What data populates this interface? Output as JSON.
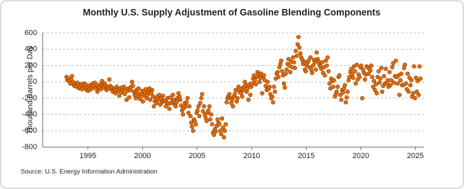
{
  "chart_data": {
    "type": "scatter",
    "title": "Monthly U.S. Supply Adjustment of Gasoline Blending Components",
    "y_label": "Thousand Barrels per Day",
    "source": "Source: U.S. Energy Information Administration",
    "xlim": [
      1990.85,
      2025.8
    ],
    "xticks": [
      1995,
      2000,
      2005,
      2010,
      2015,
      2020,
      2025
    ],
    "ylim": [
      -800,
      600
    ],
    "yticks": [
      -800,
      -600,
      -400,
      -200,
      0,
      200,
      400,
      600
    ],
    "grid": true,
    "x": [
      1993.04,
      1993.13,
      1993.21,
      1993.29,
      1993.38,
      1993.46,
      1993.54,
      1993.63,
      1993.71,
      1993.79,
      1993.88,
      1993.96,
      1994.04,
      1994.13,
      1994.21,
      1994.29,
      1994.38,
      1994.46,
      1994.54,
      1994.63,
      1994.71,
      1994.79,
      1994.88,
      1994.96,
      1995.04,
      1995.13,
      1995.21,
      1995.29,
      1995.38,
      1995.46,
      1995.54,
      1995.63,
      1995.71,
      1995.79,
      1995.88,
      1995.96,
      1996.04,
      1996.13,
      1996.21,
      1996.29,
      1996.38,
      1996.46,
      1996.54,
      1996.63,
      1996.71,
      1996.79,
      1996.88,
      1996.96,
      1997.04,
      1997.13,
      1997.21,
      1997.29,
      1997.38,
      1997.46,
      1997.54,
      1997.63,
      1997.71,
      1997.79,
      1997.88,
      1997.96,
      1998.04,
      1998.13,
      1998.21,
      1998.29,
      1998.38,
      1998.46,
      1998.54,
      1998.63,
      1998.71,
      1998.79,
      1998.88,
      1998.96,
      1999.04,
      1999.13,
      1999.21,
      1999.29,
      1999.38,
      1999.46,
      1999.54,
      1999.63,
      1999.71,
      1999.79,
      1999.88,
      1999.96,
      2000.04,
      2000.13,
      2000.21,
      2000.29,
      2000.38,
      2000.46,
      2000.54,
      2000.63,
      2000.71,
      2000.79,
      2000.88,
      2000.96,
      2001.04,
      2001.13,
      2001.21,
      2001.29,
      2001.38,
      2001.46,
      2001.54,
      2001.63,
      2001.71,
      2001.79,
      2001.88,
      2001.96,
      2002.04,
      2002.13,
      2002.21,
      2002.29,
      2002.38,
      2002.46,
      2002.54,
      2002.63,
      2002.71,
      2002.79,
      2002.88,
      2002.96,
      2003.04,
      2003.13,
      2003.21,
      2003.29,
      2003.38,
      2003.46,
      2003.54,
      2003.63,
      2003.71,
      2003.79,
      2003.88,
      2003.96,
      2004.04,
      2004.13,
      2004.21,
      2004.29,
      2004.38,
      2004.46,
      2004.54,
      2004.63,
      2004.71,
      2004.79,
      2004.88,
      2004.96,
      2005.04,
      2005.13,
      2005.21,
      2005.29,
      2005.38,
      2005.46,
      2005.54,
      2005.63,
      2005.71,
      2005.79,
      2005.88,
      2005.96,
      2006.04,
      2006.13,
      2006.21,
      2006.29,
      2006.38,
      2006.46,
      2006.54,
      2006.63,
      2006.71,
      2006.79,
      2006.88,
      2006.96,
      2007.04,
      2007.13,
      2007.21,
      2007.29,
      2007.38,
      2007.46,
      2007.54,
      2007.63,
      2007.71,
      2007.79,
      2007.88,
      2007.96,
      2008.04,
      2008.13,
      2008.21,
      2008.29,
      2008.38,
      2008.46,
      2008.54,
      2008.63,
      2008.71,
      2008.79,
      2008.88,
      2008.96,
      2009.04,
      2009.13,
      2009.21,
      2009.29,
      2009.38,
      2009.46,
      2009.54,
      2009.63,
      2009.71,
      2009.79,
      2009.88,
      2009.96,
      2010.04,
      2010.13,
      2010.21,
      2010.29,
      2010.38,
      2010.46,
      2010.54,
      2010.63,
      2010.71,
      2010.79,
      2010.88,
      2010.96,
      2011.04,
      2011.13,
      2011.21,
      2011.29,
      2011.38,
      2011.46,
      2011.54,
      2011.63,
      2011.71,
      2011.79,
      2011.88,
      2011.96,
      2012.04,
      2012.13,
      2012.21,
      2012.29,
      2012.38,
      2012.46,
      2012.54,
      2012.63,
      2012.71,
      2012.79,
      2012.88,
      2012.96,
      2013.04,
      2013.13,
      2013.21,
      2013.29,
      2013.38,
      2013.46,
      2013.54,
      2013.63,
      2013.71,
      2013.79,
      2013.88,
      2013.96,
      2014.04,
      2014.13,
      2014.21,
      2014.29,
      2014.38,
      2014.46,
      2014.54,
      2014.63,
      2014.71,
      2014.79,
      2014.88,
      2014.96,
      2015.04,
      2015.13,
      2015.21,
      2015.29,
      2015.38,
      2015.46,
      2015.54,
      2015.63,
      2015.71,
      2015.79,
      2015.88,
      2015.96,
      2016.04,
      2016.13,
      2016.21,
      2016.29,
      2016.38,
      2016.46,
      2016.54,
      2016.63,
      2016.71,
      2016.79,
      2016.88,
      2016.96,
      2017.04,
      2017.13,
      2017.21,
      2017.29,
      2017.38,
      2017.46,
      2017.54,
      2017.63,
      2017.71,
      2017.79,
      2017.88,
      2017.96,
      2018.04,
      2018.13,
      2018.21,
      2018.29,
      2018.38,
      2018.46,
      2018.54,
      2018.63,
      2018.71,
      2018.79,
      2018.88,
      2018.96,
      2019.04,
      2019.13,
      2019.21,
      2019.29,
      2019.38,
      2019.46,
      2019.54,
      2019.63,
      2019.71,
      2019.79,
      2019.88,
      2019.96,
      2020.04,
      2020.13,
      2020.21,
      2020.29,
      2020.38,
      2020.46,
      2020.54,
      2020.63,
      2020.71,
      2020.79,
      2020.88,
      2020.96,
      2021.04,
      2021.13,
      2021.21,
      2021.29,
      2021.38,
      2021.46,
      2021.54,
      2021.63,
      2021.71,
      2021.79,
      2021.88,
      2021.96,
      2022.04,
      2022.13,
      2022.21,
      2022.29,
      2022.38,
      2022.46,
      2022.54,
      2022.63,
      2022.71,
      2022.79,
      2022.88,
      2022.96,
      2023.04,
      2023.13,
      2023.21,
      2023.29,
      2023.38,
      2023.46,
      2023.54,
      2023.63,
      2023.71,
      2023.79,
      2023.88,
      2023.96,
      2024.04,
      2024.13,
      2024.21,
      2024.29,
      2024.38,
      2024.46,
      2024.54,
      2024.63,
      2024.71,
      2024.79,
      2024.88,
      2024.96,
      2025.04,
      2025.13,
      2025.21,
      2025.29,
      2025.38,
      2025.46
    ],
    "series": [
      {
        "color": "#e46c0a",
        "values": [
          60,
          20,
          40,
          10,
          -20,
          30,
          70,
          0,
          -40,
          -50,
          -20,
          -60,
          -10,
          -40,
          -80,
          -60,
          -30,
          -90,
          -50,
          -20,
          -70,
          -30,
          -100,
          -60,
          -110,
          -80,
          -40,
          -90,
          -60,
          -20,
          -50,
          -10,
          -80,
          -40,
          -120,
          -70,
          -60,
          -30,
          -90,
          10,
          -40,
          -70,
          -20,
          -50,
          -100,
          -60,
          -80,
          30,
          -50,
          -90,
          -70,
          -120,
          -80,
          -100,
          -140,
          -60,
          -90,
          -110,
          -170,
          -80,
          -130,
          -70,
          -100,
          -60,
          -150,
          -90,
          -220,
          -110,
          -80,
          -190,
          -100,
          -60,
          0,
          -50,
          -120,
          -160,
          -200,
          -100,
          -140,
          -80,
          -180,
          -210,
          -150,
          -110,
          -240,
          -170,
          -130,
          -90,
          -200,
          -160,
          -120,
          -80,
          -220,
          -140,
          -100,
          -180,
          -300,
          -240,
          -200,
          -260,
          -180,
          -220,
          -160,
          -280,
          -200,
          -250,
          -170,
          -230,
          -230,
          -300,
          -250,
          -200,
          -270,
          -330,
          -190,
          -260,
          -240,
          -160,
          -220,
          -280,
          -300,
          -250,
          -200,
          -140,
          -180,
          -220,
          -290,
          -350,
          -400,
          -320,
          -260,
          -300,
          -250,
          -200,
          -380,
          -300,
          -420,
          -500,
          -550,
          -600,
          -460,
          -480,
          -520,
          -380,
          -350,
          -300,
          -420,
          -260,
          -200,
          -150,
          -360,
          -300,
          -400,
          -440,
          -480,
          -380,
          -350,
          -300,
          -460,
          -400,
          -520,
          -620,
          -650,
          -580,
          -610,
          -540,
          -460,
          -500,
          -520,
          -600,
          -640,
          -450,
          -560,
          -680,
          -600,
          -520,
          -250,
          -200,
          -180,
          -150,
          -200,
          -260,
          -220,
          -300,
          -180,
          -150,
          -100,
          -240,
          -200,
          -60,
          -120,
          -80,
          -140,
          -180,
          -100,
          -60,
          0,
          -40,
          -120,
          -80,
          -220,
          -30,
          -160,
          -60,
          -20,
          40,
          80,
          20,
          -30,
          60,
          120,
          90,
          0,
          50,
          100,
          -140,
          50,
          80,
          20,
          -50,
          -100,
          0,
          -90,
          -60,
          -150,
          -200,
          -180,
          -250,
          -60,
          -120,
          40,
          100,
          120,
          60,
          180,
          220,
          260,
          130,
          80,
          -20,
          -70,
          100,
          150,
          220,
          280,
          200,
          120,
          250,
          180,
          300,
          240,
          170,
          380,
          320,
          460,
          550,
          420,
          350,
          300,
          270,
          220,
          250,
          150,
          130,
          200,
          240,
          260,
          180,
          300,
          150,
          110,
          200,
          270,
          240,
          150,
          360,
          280,
          250,
          210,
          190,
          160,
          240,
          110,
          180,
          80,
          260,
          200,
          300,
          130,
          -20,
          -80,
          40,
          10,
          -60,
          20,
          -180,
          -150,
          -120,
          -60,
          60,
          80,
          -160,
          -220,
          -100,
          -130,
          -80,
          -40,
          -250,
          -190,
          -120,
          20,
          60,
          120,
          160,
          90,
          50,
          190,
          130,
          -20,
          210,
          30,
          90,
          60,
          180,
          200,
          -200,
          150,
          110,
          30,
          90,
          190,
          180,
          100,
          160,
          140,
          200,
          60,
          -60,
          10,
          -100,
          -30,
          -140,
          60,
          130,
          -10,
          40,
          170,
          -120,
          -50,
          70,
          -20,
          160,
          -20,
          20,
          -60,
          120,
          -40,
          20,
          180,
          230,
          -10,
          70,
          260,
          60,
          -20,
          80,
          -160,
          20,
          100,
          -40,
          -40,
          170,
          210,
          -20,
          -90,
          100,
          -120,
          50,
          -40,
          20,
          -180,
          -140,
          190,
          -200,
          50,
          -120,
          10,
          -160,
          190,
          40
        ]
      }
    ]
  }
}
